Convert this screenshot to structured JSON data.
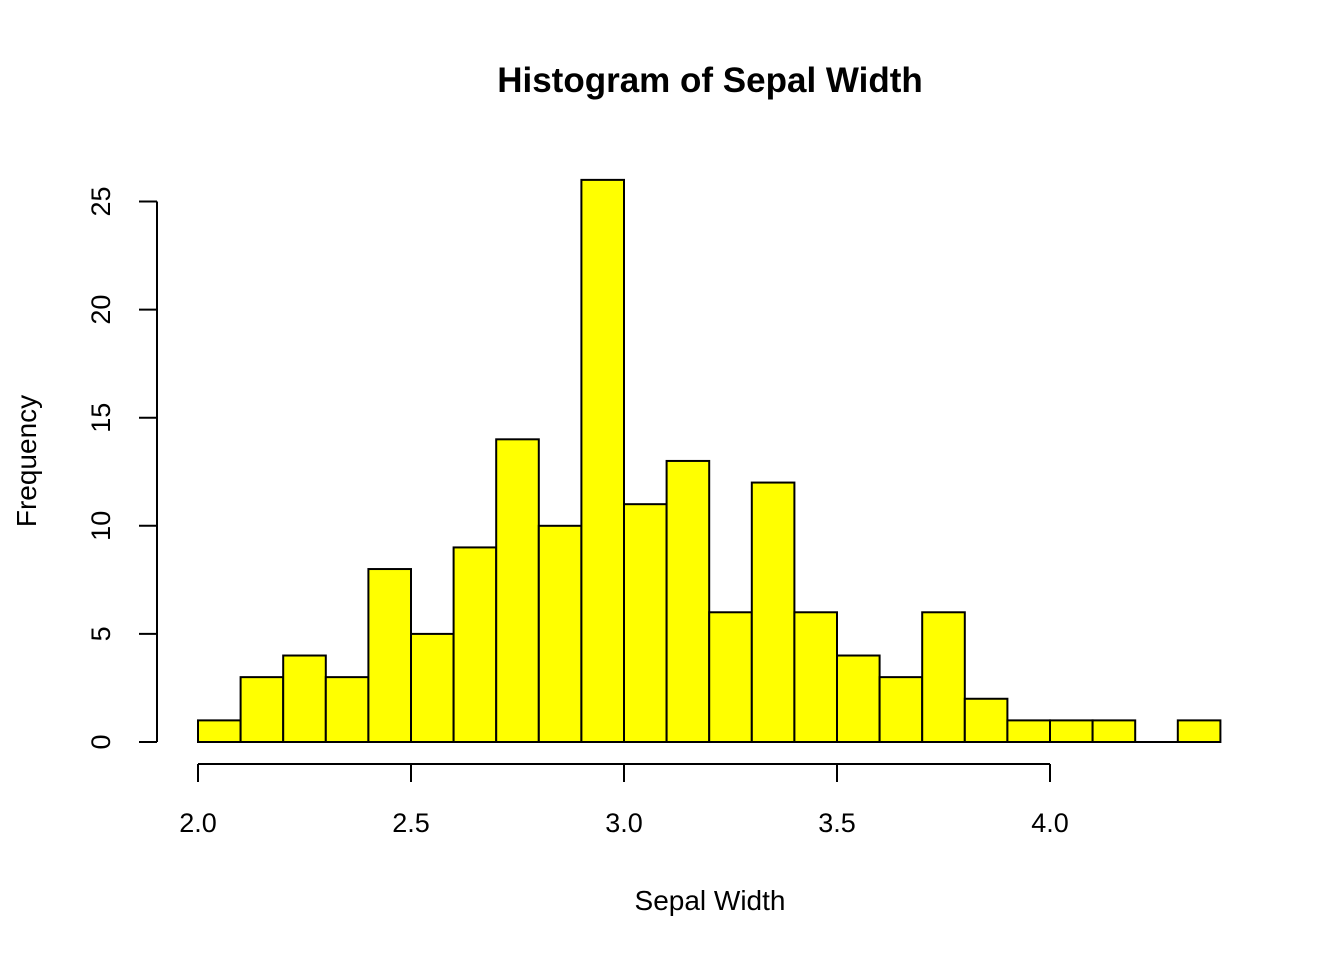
{
  "chart_data": {
    "type": "bar",
    "title": "Histogram of Sepal Width",
    "xlabel": "Sepal Width",
    "ylabel": "Frequency",
    "bar_color": "#ffff00",
    "edge_color": "#000000",
    "bins": [
      {
        "x0": 2.0,
        "x1": 2.1,
        "count": 1
      },
      {
        "x0": 2.1,
        "x1": 2.2,
        "count": 3
      },
      {
        "x0": 2.2,
        "x1": 2.3,
        "count": 4
      },
      {
        "x0": 2.3,
        "x1": 2.4,
        "count": 3
      },
      {
        "x0": 2.4,
        "x1": 2.5,
        "count": 8
      },
      {
        "x0": 2.5,
        "x1": 2.6,
        "count": 5
      },
      {
        "x0": 2.6,
        "x1": 2.7,
        "count": 9
      },
      {
        "x0": 2.7,
        "x1": 2.8,
        "count": 14
      },
      {
        "x0": 2.8,
        "x1": 2.9,
        "count": 10
      },
      {
        "x0": 2.9,
        "x1": 3.0,
        "count": 26
      },
      {
        "x0": 3.0,
        "x1": 3.1,
        "count": 11
      },
      {
        "x0": 3.1,
        "x1": 3.2,
        "count": 13
      },
      {
        "x0": 3.2,
        "x1": 3.3,
        "count": 6
      },
      {
        "x0": 3.3,
        "x1": 3.4,
        "count": 12
      },
      {
        "x0": 3.4,
        "x1": 3.5,
        "count": 6
      },
      {
        "x0": 3.5,
        "x1": 3.6,
        "count": 4
      },
      {
        "x0": 3.6,
        "x1": 3.7,
        "count": 3
      },
      {
        "x0": 3.7,
        "x1": 3.8,
        "count": 6
      },
      {
        "x0": 3.8,
        "x1": 3.9,
        "count": 2
      },
      {
        "x0": 3.9,
        "x1": 4.0,
        "count": 1
      },
      {
        "x0": 4.0,
        "x1": 4.1,
        "count": 1
      },
      {
        "x0": 4.1,
        "x1": 4.2,
        "count": 1
      },
      {
        "x0": 4.2,
        "x1": 4.3,
        "count": 0
      },
      {
        "x0": 4.3,
        "x1": 4.4,
        "count": 1
      }
    ],
    "xlim": [
      2.0,
      4.4
    ],
    "ylim": [
      0,
      26
    ],
    "x_ticks": [
      {
        "value": 2.0,
        "label": "2.0"
      },
      {
        "value": 2.5,
        "label": "2.5"
      },
      {
        "value": 3.0,
        "label": "3.0"
      },
      {
        "value": 3.5,
        "label": "3.5"
      },
      {
        "value": 4.0,
        "label": "4.0"
      }
    ],
    "y_ticks": [
      {
        "value": 0,
        "label": "0"
      },
      {
        "value": 5,
        "label": "5"
      },
      {
        "value": 10,
        "label": "10"
      },
      {
        "value": 15,
        "label": "15"
      },
      {
        "value": 20,
        "label": "20"
      },
      {
        "value": 25,
        "label": "25"
      }
    ],
    "grid": false,
    "legend": "none"
  }
}
